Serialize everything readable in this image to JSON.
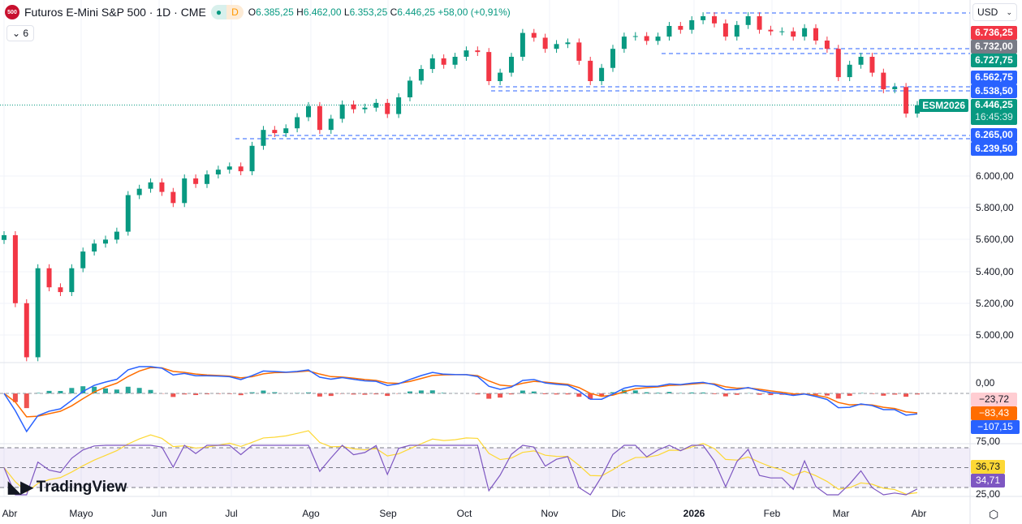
{
  "header": {
    "logo_text": "500",
    "title": "Futuros E-Mini S&P 500 · 1D · CME",
    "status_letter": "D",
    "o_label": "O",
    "open": "6.385,25",
    "h_label": "H",
    "high": "6.462,00",
    "l_label": "L",
    "low": "6.353,25",
    "c_label": "C",
    "close": "6.446,25",
    "change": "+58,00 (+0,91%)"
  },
  "indicators_toggle": {
    "count": "6"
  },
  "currency": "USD",
  "price_labels": [
    {
      "text": "6.736,25",
      "color": "#f23645"
    },
    {
      "text": "6.732,00",
      "color": "#787b86"
    },
    {
      "text": "6.727,75",
      "color": "#089981"
    },
    {
      "text": "6.562,75",
      "color": "#2962ff"
    },
    {
      "text": "6.538,50",
      "color": "#2962ff"
    },
    {
      "text": "6.265,00",
      "color": "#2962ff"
    },
    {
      "text": "6.239,50",
      "color": "#2962ff"
    }
  ],
  "last_price": {
    "symbol": "ESM2026",
    "price": "6.446,25",
    "countdown": "16:45:39",
    "color": "#089981"
  },
  "price_ticks": [
    "6.000,00",
    "5.800,00",
    "5.600,00",
    "5.400,00",
    "5.200,00",
    "5.000,00"
  ],
  "macd": {
    "zero": "0,00",
    "histogram": "−23,72",
    "signal": "−83,43",
    "macd": "−107,15",
    "colors": {
      "histogram": "#ffcdd2",
      "signal": "#ff6d00",
      "macd": "#2962ff"
    }
  },
  "rsi": {
    "tick_top": "75,00",
    "tick_bottom": "25,00",
    "ma": "36,73",
    "value": "34,71",
    "colors": {
      "ma": "#fdd835",
      "rsi": "#7e57c2"
    }
  },
  "time_axis": [
    "Abr",
    "Mayo",
    "Jun",
    "Jul",
    "Ago",
    "Sep",
    "Oct",
    "Nov",
    "Dic",
    "2026",
    "Feb",
    "Mar",
    "Abr"
  ],
  "branding": "TradingView",
  "chart_data": {
    "type": "candlestick",
    "ylim": [
      4800,
      7020
    ],
    "closes": [
      5628,
      5200,
      4860,
      5420,
      5300,
      5270,
      5420,
      5525,
      5575,
      5600,
      5650,
      5880,
      5920,
      5960,
      5900,
      5830,
      5985,
      5950,
      6010,
      6040,
      6060,
      6030,
      6190,
      6290,
      6270,
      6300,
      6370,
      6440,
      6290,
      6360,
      6450,
      6420,
      6430,
      6460,
      6390,
      6495,
      6600,
      6673,
      6740,
      6700,
      6750,
      6790,
      6780,
      6597,
      6650,
      6750,
      6900,
      6870,
      6800,
      6830,
      6840,
      6725,
      6597,
      6680,
      6800,
      6877,
      6880,
      6850,
      6877,
      6944,
      6920,
      6980,
      7005,
      6960,
      6877,
      6950,
      7005,
      6920,
      6910,
      6910,
      6877,
      6930,
      6852,
      6800,
      6622,
      6700,
      6750,
      6650,
      6546,
      6560,
      6393,
      6446
    ]
  }
}
